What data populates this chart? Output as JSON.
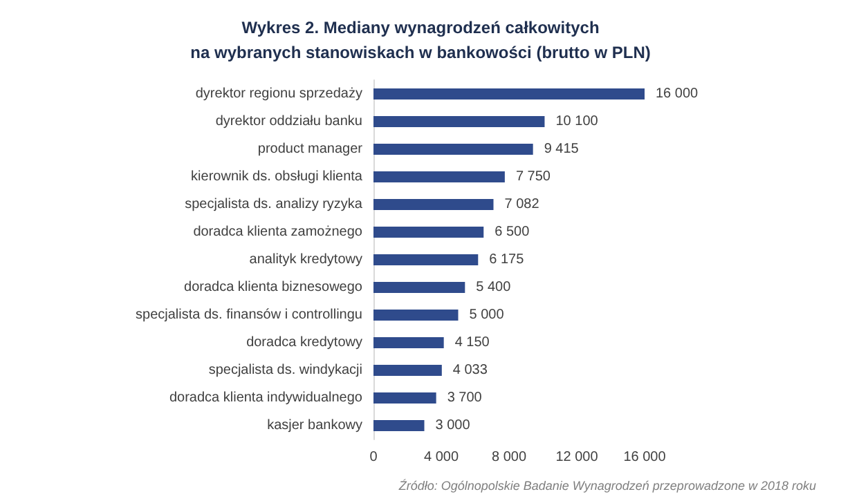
{
  "chart_data": {
    "type": "bar",
    "orientation": "horizontal",
    "title": "Wykres 2. Mediany wynagrodzeń całkowitych\nna wybranych stanowiskach w bankowości (brutto w PLN)",
    "categories": [
      "dyrektor regionu sprzedaży",
      "dyrektor oddziału banku",
      "product manager",
      "kierownik ds. obsługi klienta",
      "specjalista ds. analizy ryzyka",
      "doradca klienta zamożnego",
      "analityk kredytowy",
      "doradca klienta biznesowego",
      "specjalista ds. finansów i controllingu",
      "doradca kredytowy",
      "specjalista ds. windykacji",
      "doradca klienta indywidualnego",
      "kasjer bankowy"
    ],
    "values": [
      16000,
      10100,
      9415,
      7750,
      7082,
      6500,
      6175,
      5400,
      5000,
      4150,
      4033,
      3700,
      3000
    ],
    "value_labels": [
      "16 000",
      "10 100",
      "9 415",
      "7 750",
      "7 082",
      "6 500",
      "6 175",
      "5 400",
      "5 000",
      "4 150",
      "4 033",
      "3 700",
      "3 000"
    ],
    "color": "#2f4b8c",
    "xlim": [
      0,
      16000
    ],
    "xticks": [
      0,
      {
        "value": 4000,
        "label": "4 000"
      },
      {
        "value": 8000,
        "label": "8 000"
      },
      {
        "value": 12000,
        "label": "12 000"
      },
      {
        "value": 16000,
        "label": "16 000"
      }
    ],
    "grid": false,
    "annotations": [
      "Źródło: Ogólnopolskie Badanie Wynagrodzeń przeprowadzone w 2018 roku"
    ]
  }
}
